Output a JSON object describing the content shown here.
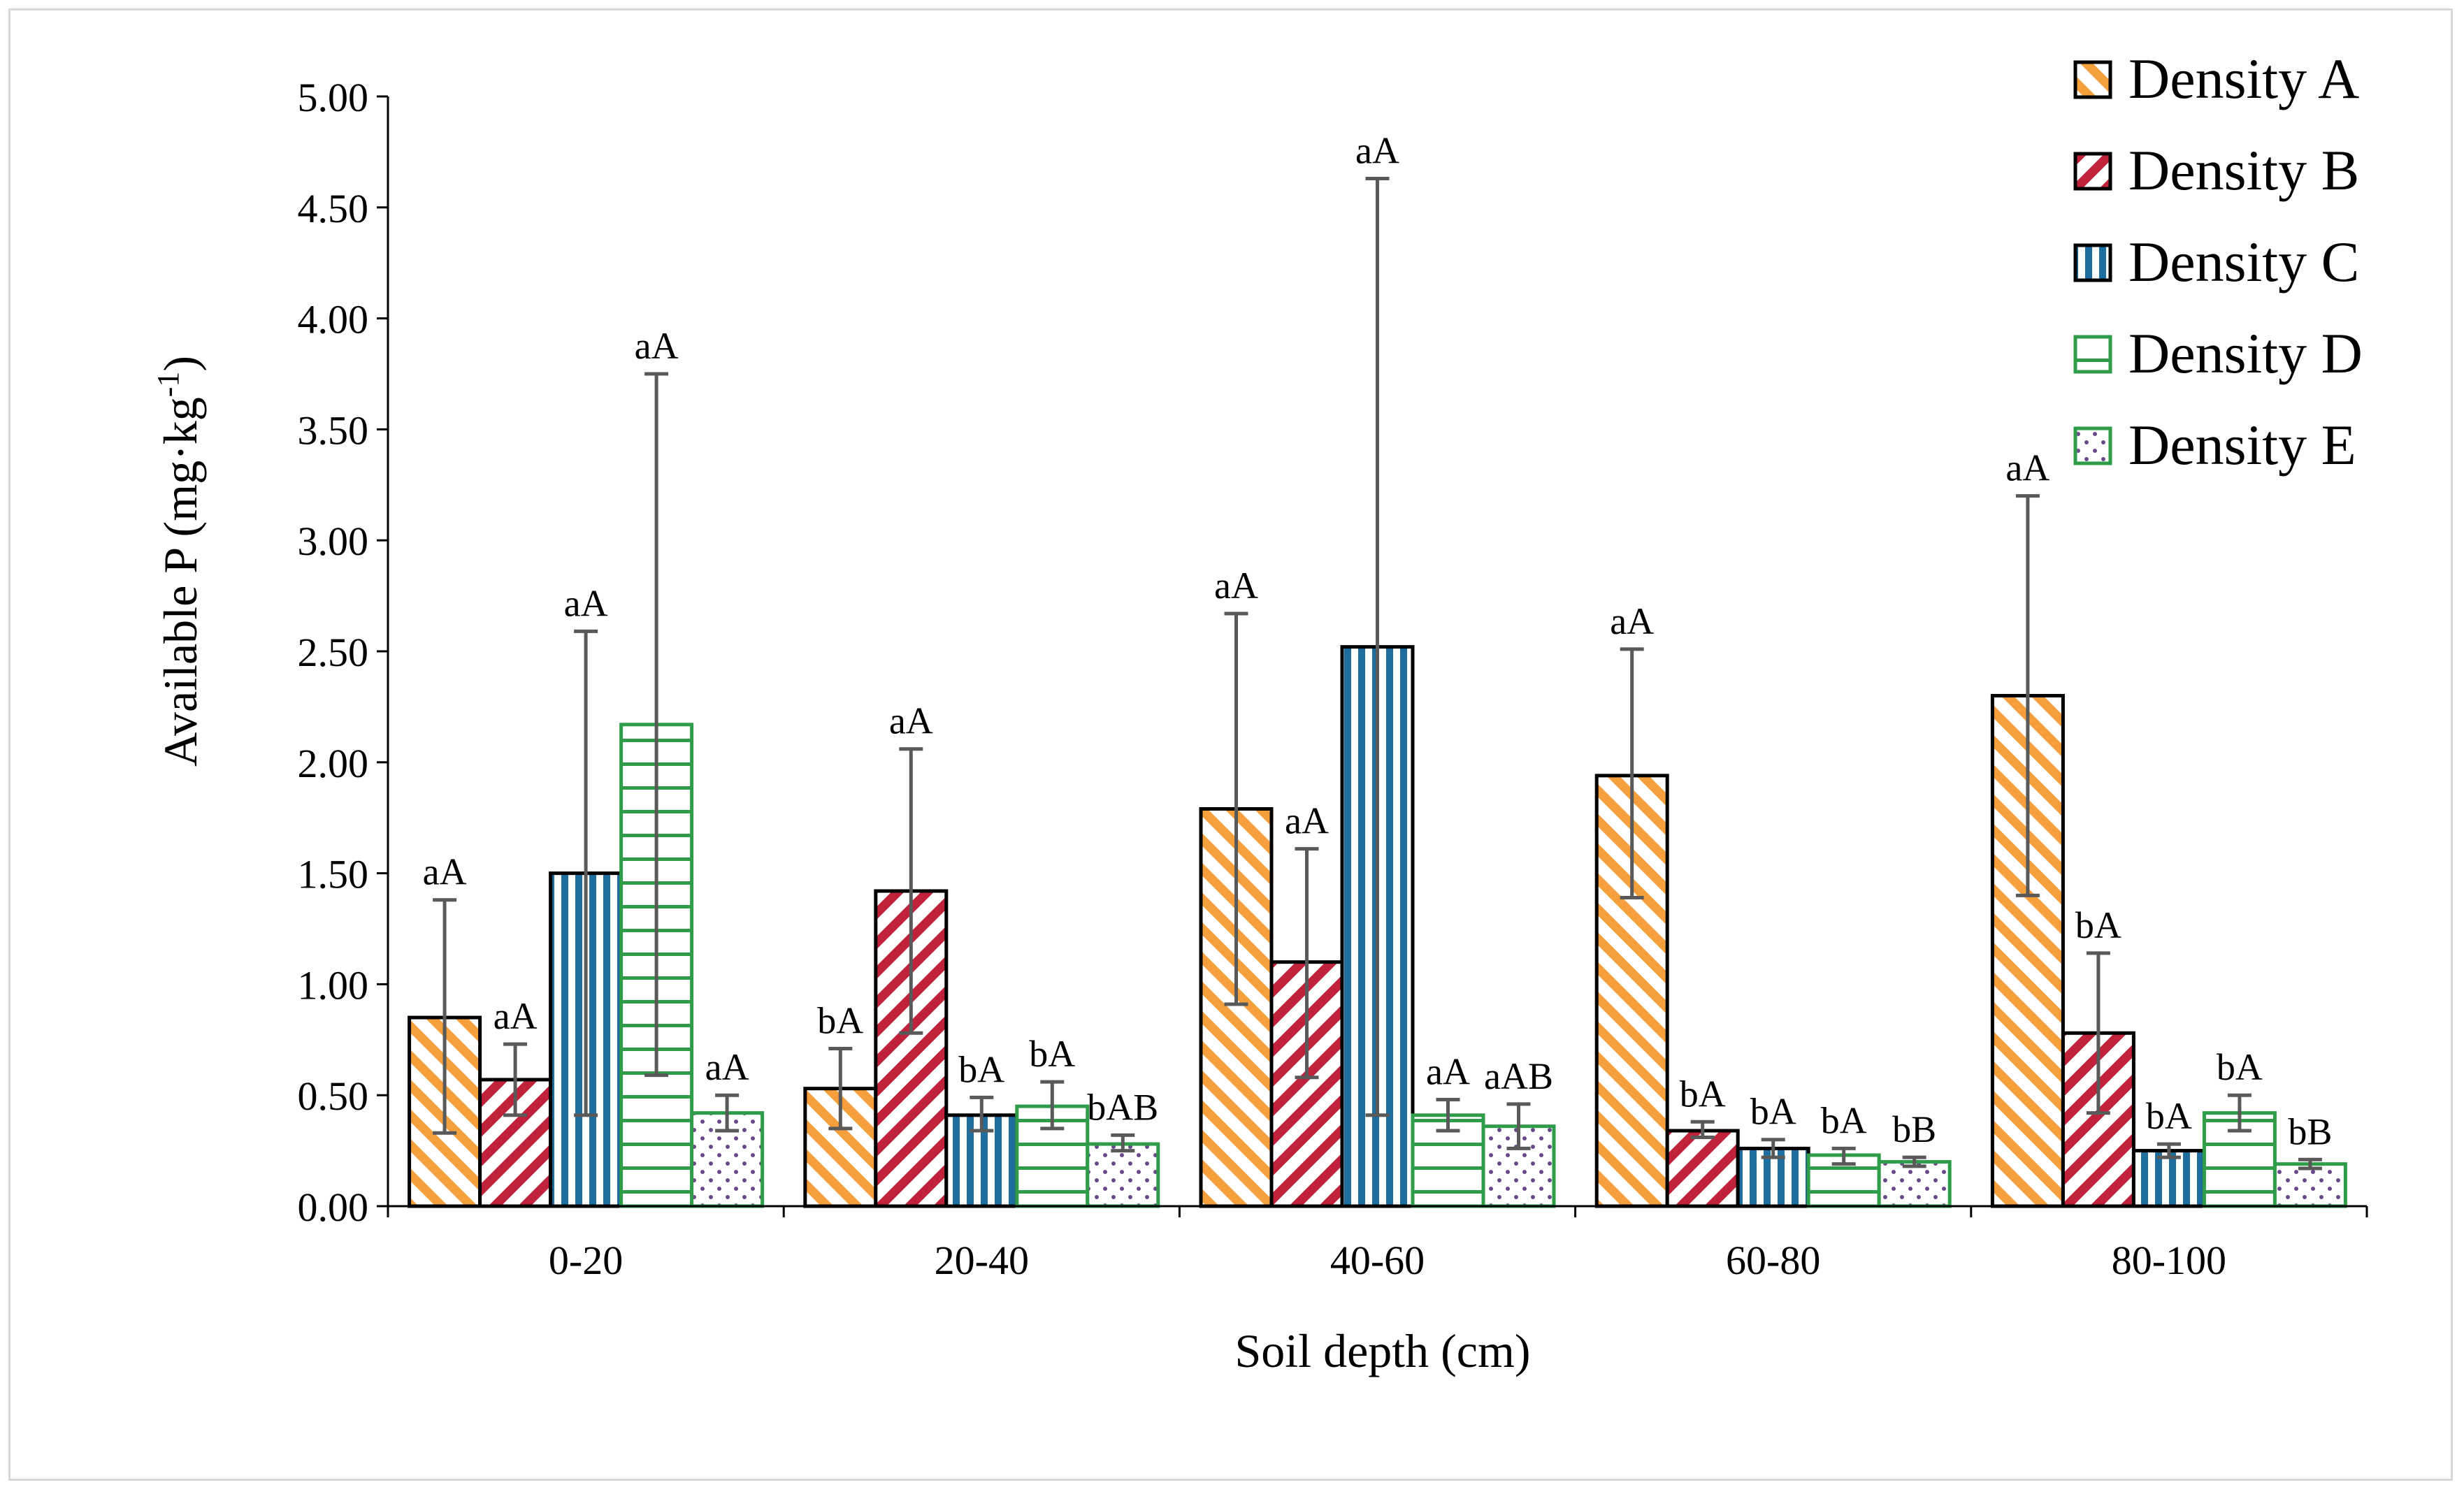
{
  "chart_data": {
    "type": "bar",
    "title": "",
    "xlabel": "Soil depth (cm)",
    "ylabel_main": "Available P (mg·kg",
    "ylabel_sup": "-1",
    "ylabel_end": ")",
    "ylim": [
      0,
      5
    ],
    "ytick_values": [
      0,
      0.5,
      1,
      1.5,
      2,
      2.5,
      3,
      3.5,
      4,
      4.5,
      5
    ],
    "ytick_labels": [
      "0.00",
      "0.50",
      "1.00",
      "1.50",
      "2.00",
      "2.50",
      "3.00",
      "3.50",
      "4.00",
      "4.50",
      "5.00"
    ],
    "grid": false,
    "legend_position": "top-right",
    "categories": [
      "0-20",
      "20-40",
      "40-60",
      "60-80",
      "80-100"
    ],
    "series": [
      {
        "name": "Density A",
        "pattern": "diag-right",
        "color": "#f5a03c",
        "border": "#000000",
        "values": [
          0.85,
          0.53,
          1.79,
          1.94,
          2.3
        ],
        "err_low": [
          0.33,
          0.35,
          0.91,
          1.39,
          1.4
        ],
        "err_high": [
          1.38,
          0.71,
          2.67,
          2.51,
          3.2
        ],
        "labels": [
          "aA",
          "bA",
          "aA",
          "aA",
          "aA"
        ]
      },
      {
        "name": "Density B",
        "pattern": "diag-left",
        "color": "#c0223b",
        "border": "#000000",
        "values": [
          0.57,
          1.42,
          1.1,
          0.34,
          0.78
        ],
        "err_low": [
          0.41,
          0.78,
          0.58,
          0.31,
          0.42
        ],
        "err_high": [
          0.73,
          2.06,
          1.61,
          0.38,
          1.14
        ],
        "labels": [
          "aA",
          "aA",
          "aA",
          "bA",
          "bA"
        ]
      },
      {
        "name": "Density C",
        "pattern": "vertical",
        "color": "#1e6ea0",
        "border": "#000000",
        "values": [
          1.5,
          0.41,
          2.52,
          0.26,
          0.25
        ],
        "err_low": [
          0.41,
          0.34,
          0.41,
          0.22,
          0.22
        ],
        "err_high": [
          2.59,
          0.49,
          4.63,
          0.3,
          0.28
        ],
        "labels": [
          "aA",
          "bA",
          "aA",
          "bA",
          "bA"
        ]
      },
      {
        "name": "Density D",
        "pattern": "horizontal",
        "color": "#2e9c48",
        "border": "#2e9c48",
        "values": [
          2.17,
          0.45,
          0.41,
          0.23,
          0.42
        ],
        "err_low": [
          0.59,
          0.35,
          0.34,
          0.19,
          0.34
        ],
        "err_high": [
          3.75,
          0.56,
          0.48,
          0.26,
          0.5
        ],
        "labels": [
          "aA",
          "bA",
          "aA",
          "bA",
          "bA"
        ]
      },
      {
        "name": "Density E",
        "pattern": "dots",
        "color": "#6a4a8a",
        "border": "#2e9c48",
        "values": [
          0.42,
          0.28,
          0.36,
          0.2,
          0.19
        ],
        "err_low": [
          0.34,
          0.25,
          0.26,
          0.18,
          0.17
        ],
        "err_high": [
          0.5,
          0.32,
          0.46,
          0.22,
          0.21
        ],
        "labels": [
          "aA",
          "bAB",
          "aAB",
          "bB",
          "bB"
        ]
      }
    ]
  }
}
